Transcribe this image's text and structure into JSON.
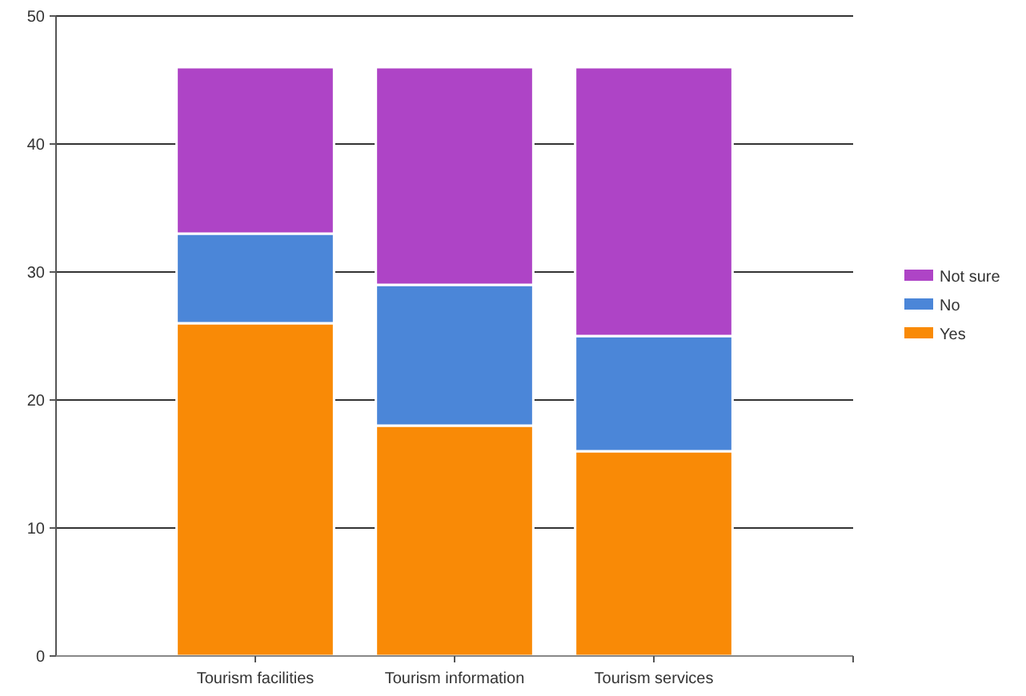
{
  "chart_data": {
    "type": "bar",
    "stacked": true,
    "categories": [
      "Tourism facilities",
      "Tourism information",
      "Tourism services"
    ],
    "series": [
      {
        "name": "Yes",
        "color": "#f98a06",
        "values": [
          26,
          18,
          16
        ]
      },
      {
        "name": "No",
        "color": "#4b86d8",
        "values": [
          7,
          11,
          9
        ]
      },
      {
        "name": "Not sure",
        "color": "#ae44c6",
        "values": [
          13,
          17,
          21
        ]
      }
    ],
    "ylim": [
      0,
      50
    ],
    "yticks": [
      0,
      10,
      20,
      30,
      40,
      50
    ],
    "grid": "y",
    "legend": "right"
  }
}
